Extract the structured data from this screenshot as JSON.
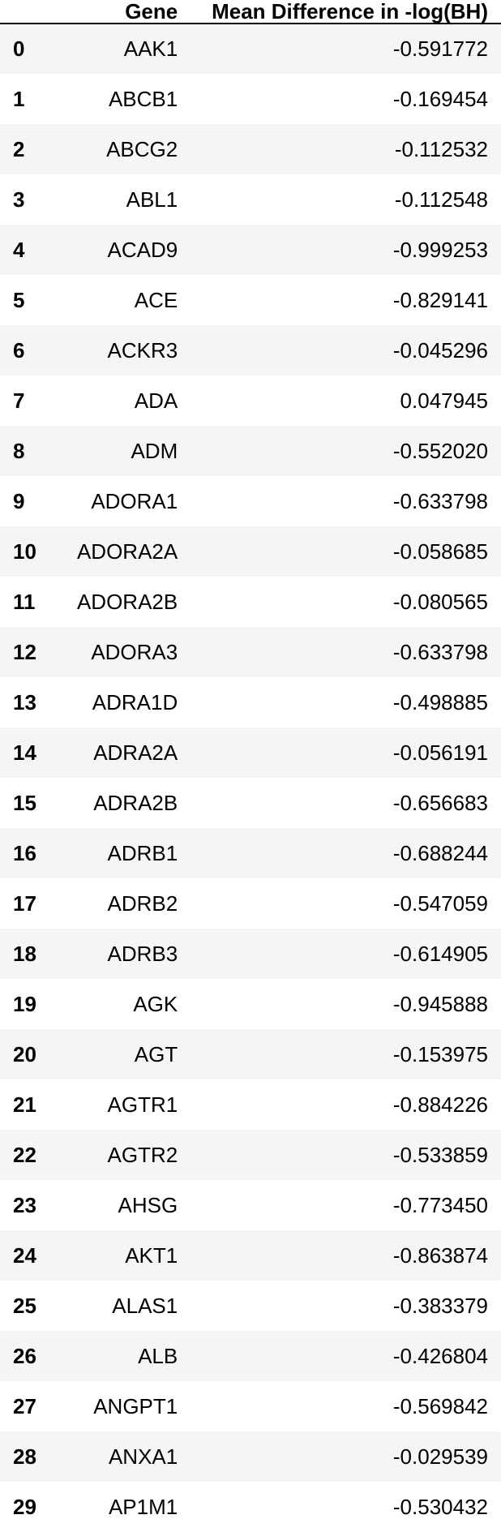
{
  "table": {
    "columns": [
      "",
      "Gene",
      "Mean Difference in -log(BH)"
    ],
    "rows": [
      {
        "index": "0",
        "gene": "AAK1",
        "value": "-0.591772"
      },
      {
        "index": "1",
        "gene": "ABCB1",
        "value": "-0.169454"
      },
      {
        "index": "2",
        "gene": "ABCG2",
        "value": "-0.112532"
      },
      {
        "index": "3",
        "gene": "ABL1",
        "value": "-0.112548"
      },
      {
        "index": "4",
        "gene": "ACAD9",
        "value": "-0.999253"
      },
      {
        "index": "5",
        "gene": "ACE",
        "value": "-0.829141"
      },
      {
        "index": "6",
        "gene": "ACKR3",
        "value": "-0.045296"
      },
      {
        "index": "7",
        "gene": "ADA",
        "value": "0.047945"
      },
      {
        "index": "8",
        "gene": "ADM",
        "value": "-0.552020"
      },
      {
        "index": "9",
        "gene": "ADORA1",
        "value": "-0.633798"
      },
      {
        "index": "10",
        "gene": "ADORA2A",
        "value": "-0.058685"
      },
      {
        "index": "11",
        "gene": "ADORA2B",
        "value": "-0.080565"
      },
      {
        "index": "12",
        "gene": "ADORA3",
        "value": "-0.633798"
      },
      {
        "index": "13",
        "gene": "ADRA1D",
        "value": "-0.498885"
      },
      {
        "index": "14",
        "gene": "ADRA2A",
        "value": "-0.056191"
      },
      {
        "index": "15",
        "gene": "ADRA2B",
        "value": "-0.656683"
      },
      {
        "index": "16",
        "gene": "ADRB1",
        "value": "-0.688244"
      },
      {
        "index": "17",
        "gene": "ADRB2",
        "value": "-0.547059"
      },
      {
        "index": "18",
        "gene": "ADRB3",
        "value": "-0.614905"
      },
      {
        "index": "19",
        "gene": "AGK",
        "value": "-0.945888"
      },
      {
        "index": "20",
        "gene": "AGT",
        "value": "-0.153975"
      },
      {
        "index": "21",
        "gene": "AGTR1",
        "value": "-0.884226"
      },
      {
        "index": "22",
        "gene": "AGTR2",
        "value": "-0.533859"
      },
      {
        "index": "23",
        "gene": "AHSG",
        "value": "-0.773450"
      },
      {
        "index": "24",
        "gene": "AKT1",
        "value": "-0.863874"
      },
      {
        "index": "25",
        "gene": "ALAS1",
        "value": "-0.383379"
      },
      {
        "index": "26",
        "gene": "ALB",
        "value": "-0.426804"
      },
      {
        "index": "27",
        "gene": "ANGPT1",
        "value": "-0.569842"
      },
      {
        "index": "28",
        "gene": "ANXA1",
        "value": "-0.029539"
      },
      {
        "index": "29",
        "gene": "AP1M1",
        "value": "-0.530432"
      }
    ]
  }
}
